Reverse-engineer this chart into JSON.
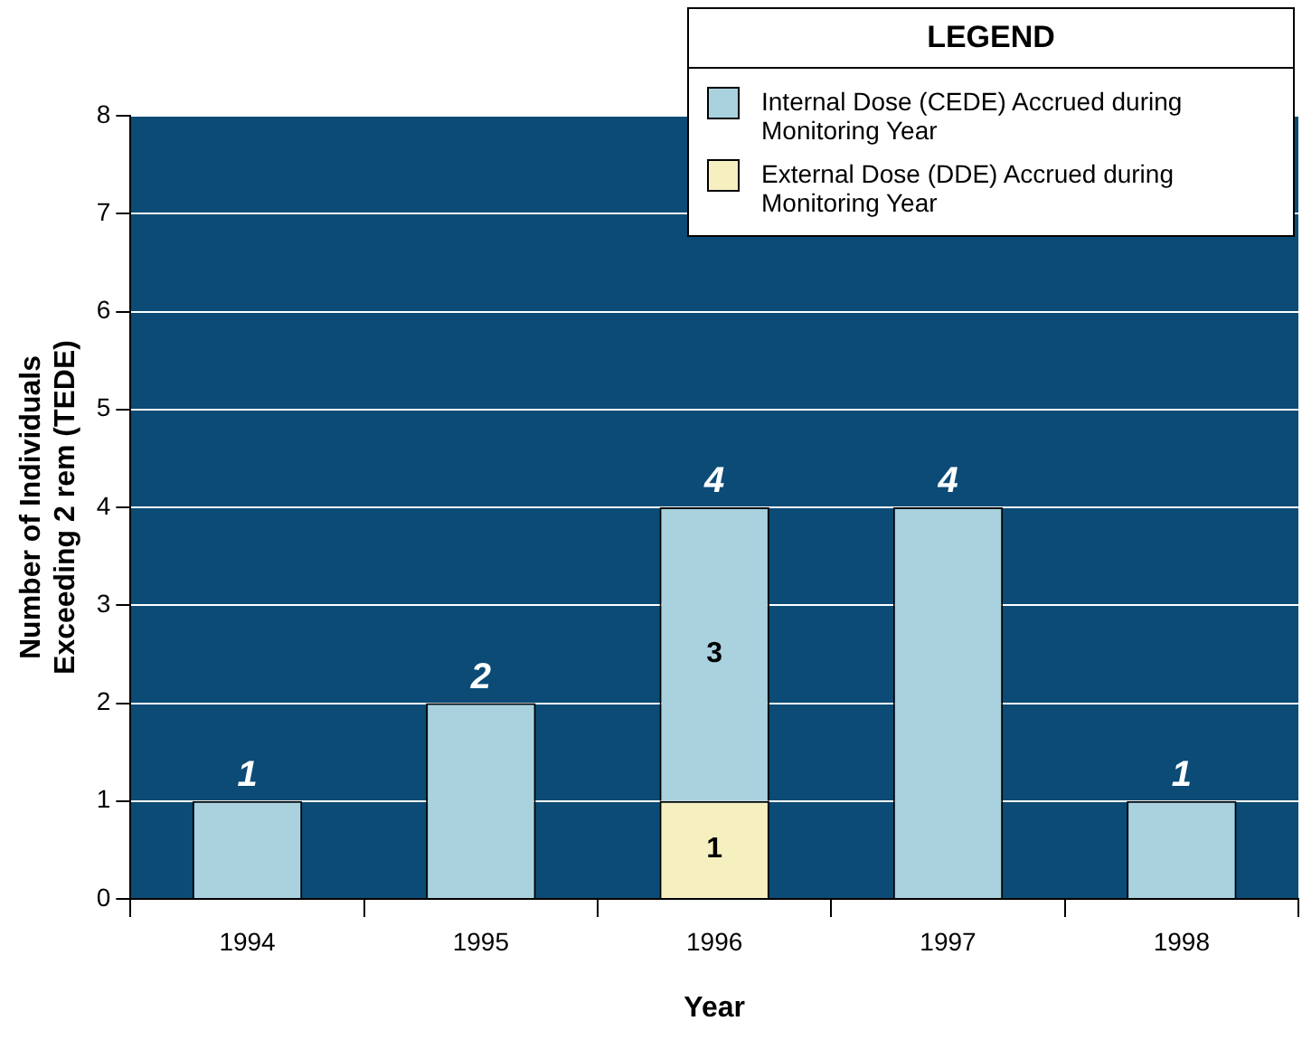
{
  "chart_data": {
    "type": "bar",
    "stacked": true,
    "categories": [
      "1994",
      "1995",
      "1996",
      "1997",
      "1998"
    ],
    "series": [
      {
        "name": "External Dose (DDE) Accrued during Monitoring Year",
        "color": "#f6efc0",
        "values": [
          0,
          0,
          1,
          0,
          0
        ],
        "value_labels": [
          null,
          null,
          "1",
          null,
          null
        ]
      },
      {
        "name": "Internal Dose (CEDE) Accrued during Monitoring Year",
        "color": "#a9d2de",
        "values": [
          1,
          2,
          3,
          4,
          1
        ],
        "value_labels": [
          null,
          null,
          "3",
          null,
          null
        ]
      }
    ],
    "totals": [
      "1",
      "2",
      "4",
      "4",
      "1"
    ],
    "xlabel": "Year",
    "ylabel": "Number of Individuals\nExceeding 2 rem (TEDE)",
    "ylim": [
      0,
      8
    ],
    "yticks": [
      0,
      1,
      2,
      3,
      4,
      5,
      6,
      7,
      8
    ],
    "grid": "y",
    "legend": "top right",
    "legend_title": "LEGEND"
  }
}
